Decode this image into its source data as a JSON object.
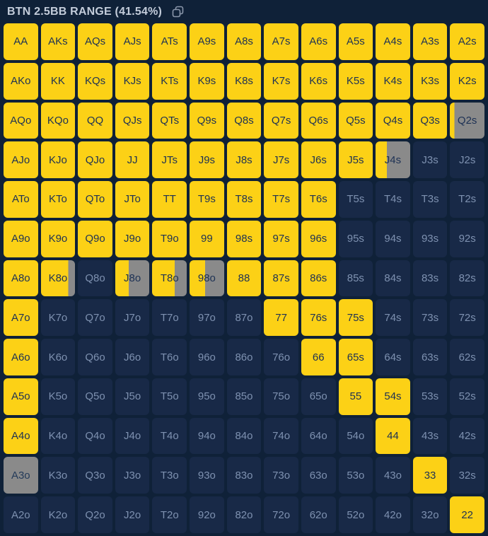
{
  "header": {
    "title": "BTN 2.5BB RANGE (41.54%)",
    "copy_icon": "copy-icon"
  },
  "colors": {
    "background": "#0F2138",
    "cell_in_range": "#FCD116",
    "cell_out_of_range": "#182947",
    "cell_partial_gray": "#8A8A8A",
    "text_on_yellow": "#1D3154",
    "text_on_dark": "#7E91B0",
    "header_text": "#C3CCDA",
    "copy_icon_stroke": "#8A97AB"
  },
  "chart_data": {
    "type": "heatmap",
    "title": "BTN 2.5BB RANGE (41.54%)",
    "range_percent": 41.54,
    "legend": {
      "1": "raise (yellow)",
      "0": "fold (dark)",
      "-1": "other action (gray)",
      "fraction": "mixed: fraction of cell colored yellow, remainder gray"
    },
    "hands": [
      [
        "AA",
        "AKs",
        "AQs",
        "AJs",
        "ATs",
        "A9s",
        "A8s",
        "A7s",
        "A6s",
        "A5s",
        "A4s",
        "A3s",
        "A2s"
      ],
      [
        "AKo",
        "KK",
        "KQs",
        "KJs",
        "KTs",
        "K9s",
        "K8s",
        "K7s",
        "K6s",
        "K5s",
        "K4s",
        "K3s",
        "K2s"
      ],
      [
        "AQo",
        "KQo",
        "QQ",
        "QJs",
        "QTs",
        "Q9s",
        "Q8s",
        "Q7s",
        "Q6s",
        "Q5s",
        "Q4s",
        "Q3s",
        "Q2s"
      ],
      [
        "AJo",
        "KJo",
        "QJo",
        "JJ",
        "JTs",
        "J9s",
        "J8s",
        "J7s",
        "J6s",
        "J5s",
        "J4s",
        "J3s",
        "J2s"
      ],
      [
        "ATo",
        "KTo",
        "QTo",
        "JTo",
        "TT",
        "T9s",
        "T8s",
        "T7s",
        "T6s",
        "T5s",
        "T4s",
        "T3s",
        "T2s"
      ],
      [
        "A9o",
        "K9o",
        "Q9o",
        "J9o",
        "T9o",
        "99",
        "98s",
        "97s",
        "96s",
        "95s",
        "94s",
        "93s",
        "92s"
      ],
      [
        "A8o",
        "K8o",
        "Q8o",
        "J8o",
        "T8o",
        "98o",
        "88",
        "87s",
        "86s",
        "85s",
        "84s",
        "83s",
        "82s"
      ],
      [
        "A7o",
        "K7o",
        "Q7o",
        "J7o",
        "T7o",
        "97o",
        "87o",
        "77",
        "76s",
        "75s",
        "74s",
        "73s",
        "72s"
      ],
      [
        "A6o",
        "K6o",
        "Q6o",
        "J6o",
        "T6o",
        "96o",
        "86o",
        "76o",
        "66",
        "65s",
        "64s",
        "63s",
        "62s"
      ],
      [
        "A5o",
        "K5o",
        "Q5o",
        "J5o",
        "T5o",
        "95o",
        "85o",
        "75o",
        "65o",
        "55",
        "54s",
        "53s",
        "52s"
      ],
      [
        "A4o",
        "K4o",
        "Q4o",
        "J4o",
        "T4o",
        "94o",
        "84o",
        "74o",
        "64o",
        "54o",
        "44",
        "43s",
        "42s"
      ],
      [
        "A3o",
        "K3o",
        "Q3o",
        "J3o",
        "T3o",
        "93o",
        "83o",
        "73o",
        "63o",
        "53o",
        "43o",
        "33",
        "32s"
      ],
      [
        "A2o",
        "K2o",
        "Q2o",
        "J2o",
        "T2o",
        "92o",
        "82o",
        "72o",
        "62o",
        "52o",
        "42o",
        "32o",
        "22"
      ]
    ],
    "fills": [
      [
        1,
        1,
        1,
        1,
        1,
        1,
        1,
        1,
        1,
        1,
        1,
        1,
        1
      ],
      [
        1,
        1,
        1,
        1,
        1,
        1,
        1,
        1,
        1,
        1,
        1,
        1,
        1
      ],
      [
        1,
        1,
        1,
        1,
        1,
        1,
        1,
        1,
        1,
        1,
        1,
        1,
        0.13
      ],
      [
        1,
        1,
        1,
        1,
        1,
        1,
        1,
        1,
        1,
        1,
        0.33,
        0,
        0
      ],
      [
        1,
        1,
        1,
        1,
        1,
        1,
        1,
        1,
        1,
        0,
        0,
        0,
        0
      ],
      [
        1,
        1,
        1,
        1,
        1,
        1,
        1,
        1,
        1,
        0,
        0,
        0,
        0
      ],
      [
        1,
        0.8,
        0,
        0.4,
        0.65,
        0.45,
        1,
        1,
        1,
        0,
        0,
        0,
        0
      ],
      [
        1,
        0,
        0,
        0,
        0,
        0,
        0,
        1,
        1,
        1,
        0,
        0,
        0
      ],
      [
        1,
        0,
        0,
        0,
        0,
        0,
        0,
        0,
        1,
        1,
        0,
        0,
        0
      ],
      [
        1,
        0,
        0,
        0,
        0,
        0,
        0,
        0,
        0,
        1,
        1,
        0,
        0
      ],
      [
        1,
        0,
        0,
        0,
        0,
        0,
        0,
        0,
        0,
        0,
        1,
        0,
        0
      ],
      [
        -1,
        0,
        0,
        0,
        0,
        0,
        0,
        0,
        0,
        0,
        0,
        1,
        0
      ],
      [
        0,
        0,
        0,
        0,
        0,
        0,
        0,
        0,
        0,
        0,
        0,
        0,
        1
      ]
    ]
  }
}
